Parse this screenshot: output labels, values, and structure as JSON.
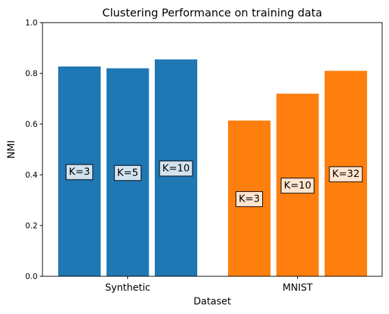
{
  "chart_data": {
    "type": "bar",
    "title": "Clustering Performance on training data",
    "xlabel": "Dataset",
    "ylabel": "NMI",
    "ylim": [
      0,
      1.0
    ],
    "yticks": [
      "0.0",
      "0.2",
      "0.4",
      "0.6",
      "0.8",
      "1.0"
    ],
    "grid": false,
    "groups": [
      {
        "category": "Synthetic",
        "color": "#1f77b4",
        "label_box_fill": "#d2e3f0",
        "bars": [
          {
            "label": "K=3",
            "value": 0.827
          },
          {
            "label": "K=5",
            "value": 0.82
          },
          {
            "label": "K=10",
            "value": 0.855
          }
        ]
      },
      {
        "category": "MNIST",
        "color": "#ff7f0e",
        "label_box_fill": "#ffe5cf",
        "bars": [
          {
            "label": "K=3",
            "value": 0.614
          },
          {
            "label": "K=10",
            "value": 0.72
          },
          {
            "label": "K=32",
            "value": 0.81
          }
        ]
      }
    ]
  }
}
